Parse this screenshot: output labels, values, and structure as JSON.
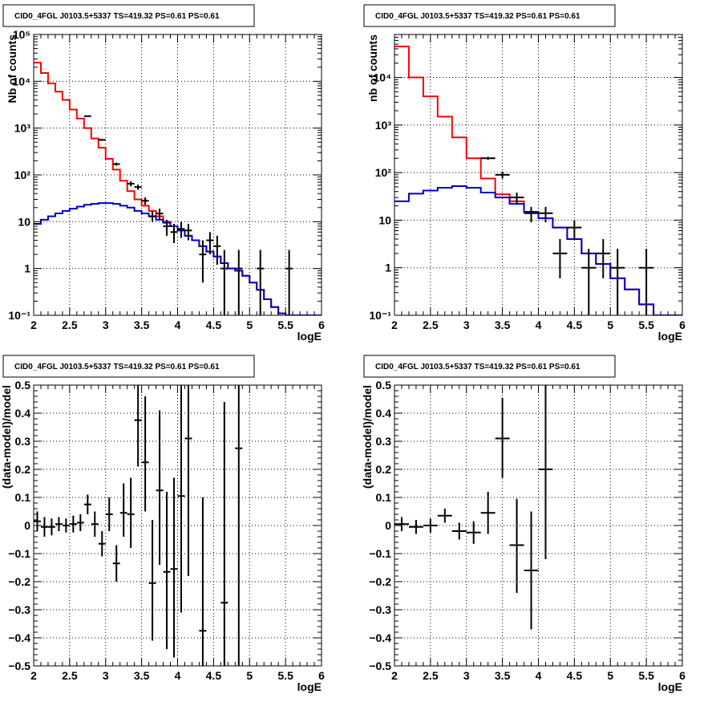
{
  "chart_data": [
    {
      "id": "p1",
      "type": "line",
      "subtype": "step-histogram-with-data-points",
      "title": "CID0_4FGL J0103.5+5337 TS=419.32 PS=0.61 PS=0.61",
      "xlabel": "logE",
      "ylabel": "Nb of counts",
      "xlim": [
        2,
        6
      ],
      "ylim": [
        0.1,
        100000
      ],
      "yscale": "log",
      "grid": true,
      "xticks": [
        2,
        2.5,
        3,
        3.5,
        4,
        4.5,
        5,
        5.5,
        6
      ],
      "xtick_labels": [
        "2",
        "2.5",
        "3",
        "3.5",
        "4",
        "4.5",
        "5",
        "5.5",
        "6"
      ],
      "yticks": [
        0.1,
        1,
        10,
        100,
        1000,
        10000,
        100000
      ],
      "ytick_labels": [
        "10⁻¹",
        "1",
        "10",
        "10²",
        "10³",
        "10⁴",
        "10⁵"
      ],
      "series": [
        {
          "color": "#ff0000",
          "style": "step",
          "bin_edges": [
            2.0,
            2.1,
            2.2,
            2.3,
            2.4,
            2.5,
            2.6,
            2.7,
            2.8,
            2.9,
            3.0,
            3.1,
            3.2,
            3.3,
            3.4,
            3.5,
            3.6,
            3.7,
            3.8,
            3.9,
            4.0,
            4.1,
            4.2,
            4.3,
            4.4,
            4.5,
            4.6,
            4.7,
            4.8,
            4.9,
            5.0,
            5.1,
            5.2,
            5.3,
            5.4,
            5.5,
            5.6,
            5.7,
            5.8,
            5.9,
            6.0
          ],
          "values": [
            25000,
            15000,
            9000,
            6000,
            4000,
            2500,
            1600,
            1000,
            600,
            380,
            220,
            130,
            75,
            45,
            30,
            22,
            17,
            13,
            10,
            8,
            6.5,
            5,
            4,
            3,
            2.3,
            1.8,
            1.3,
            1.0,
            0.9,
            0.7,
            0.5,
            0.35,
            0.22,
            0.15,
            0.11,
            0.1,
            0.1,
            0.1,
            0.1,
            0.1
          ]
        },
        {
          "color": "#0000cc",
          "style": "step",
          "bin_edges": [
            2.0,
            2.1,
            2.2,
            2.3,
            2.4,
            2.5,
            2.6,
            2.7,
            2.8,
            2.9,
            3.0,
            3.1,
            3.2,
            3.3,
            3.4,
            3.5,
            3.6,
            3.7,
            3.8,
            3.9,
            4.0,
            4.1,
            4.2,
            4.3,
            4.4,
            4.5,
            4.6,
            4.7,
            4.8,
            4.9,
            5.0,
            5.1,
            5.2,
            5.3,
            5.4,
            5.5,
            5.6,
            5.7,
            5.8,
            5.9,
            6.0
          ],
          "values": [
            9,
            11,
            13,
            15,
            17,
            19,
            21,
            23,
            24,
            25,
            25,
            24,
            22,
            20,
            17,
            15,
            13,
            11,
            9.5,
            8,
            6.5,
            5,
            4,
            3,
            2.3,
            1.8,
            1.3,
            1.0,
            0.9,
            0.7,
            0.5,
            0.35,
            0.22,
            0.15,
            0.11,
            0.1,
            0.1,
            0.1,
            0.1,
            0.1
          ]
        },
        {
          "color": "#000000",
          "style": "points",
          "points": [
            {
              "x": 2.75,
              "y": 1800,
              "xerr": 0.05,
              "ylo": 1750,
              "yhi": 1850
            },
            {
              "x": 2.95,
              "y": 560,
              "xerr": 0.05,
              "ylo": 535,
              "yhi": 585
            },
            {
              "x": 3.15,
              "y": 170,
              "xerr": 0.05,
              "ylo": 157,
              "yhi": 183
            },
            {
              "x": 3.35,
              "y": 65,
              "xerr": 0.05,
              "ylo": 57,
              "yhi": 73
            },
            {
              "x": 3.45,
              "y": 55,
              "xerr": 0.05,
              "ylo": 48,
              "yhi": 62
            },
            {
              "x": 3.55,
              "y": 28,
              "xerr": 0.05,
              "ylo": 23,
              "yhi": 33
            },
            {
              "x": 3.65,
              "y": 13,
              "xerr": 0.05,
              "ylo": 10,
              "yhi": 17
            },
            {
              "x": 3.75,
              "y": 15,
              "xerr": 0.05,
              "ylo": 11,
              "yhi": 19
            },
            {
              "x": 3.85,
              "y": 8,
              "xerr": 0.05,
              "ylo": 5,
              "yhi": 11
            },
            {
              "x": 3.95,
              "y": 6,
              "xerr": 0.05,
              "ylo": 3.5,
              "yhi": 9
            },
            {
              "x": 4.05,
              "y": 7,
              "xerr": 0.05,
              "ylo": 4.5,
              "yhi": 10
            },
            {
              "x": 4.15,
              "y": 6.5,
              "xerr": 0.05,
              "ylo": 4,
              "yhi": 9
            },
            {
              "x": 4.35,
              "y": 2,
              "xerr": 0.05,
              "ylo": 0.5,
              "yhi": 4
            },
            {
              "x": 4.45,
              "y": 4,
              "xerr": 0.05,
              "ylo": 2,
              "yhi": 6
            },
            {
              "x": 4.55,
              "y": 3,
              "xerr": 0.05,
              "ylo": 1.2,
              "yhi": 5
            },
            {
              "x": 4.65,
              "y": 1,
              "xerr": 0.05,
              "ylo": 0.1,
              "yhi": 2.5
            },
            {
              "x": 4.85,
              "y": 1,
              "xerr": 0.05,
              "ylo": 0.1,
              "yhi": 2.5
            },
            {
              "x": 5.15,
              "y": 1,
              "xerr": 0.05,
              "ylo": 0.1,
              "yhi": 2.5
            },
            {
              "x": 5.55,
              "y": 1,
              "xerr": 0.05,
              "ylo": 0.1,
              "yhi": 2.5
            }
          ]
        }
      ]
    },
    {
      "id": "p2",
      "type": "line",
      "subtype": "step-histogram-with-data-points",
      "title": "CID0_4FGL J0103.5+5337 TS=419.32 PS=0.61 PS=0.61",
      "xlabel": "logE",
      "ylabel": "nb of counts",
      "xlim": [
        2,
        6
      ],
      "ylim": [
        0.1,
        80000
      ],
      "yscale": "log",
      "grid": true,
      "xticks": [
        2,
        2.5,
        3,
        3.5,
        4,
        4.5,
        5,
        5.5,
        6
      ],
      "xtick_labels": [
        "2",
        "2.5",
        "3",
        "3.5",
        "4",
        "4.5",
        "5",
        "5.5",
        "6"
      ],
      "yticks": [
        0.1,
        1,
        10,
        100,
        1000,
        10000
      ],
      "ytick_labels": [
        "10⁻¹",
        "1",
        "10",
        "10²",
        "10³",
        "10⁴"
      ],
      "series": [
        {
          "color": "#ff0000",
          "style": "step",
          "bin_edges": [
            2.0,
            2.2,
            2.4,
            2.6,
            2.8,
            3.0,
            3.2,
            3.4,
            3.6,
            3.8,
            4.0,
            4.2,
            4.4,
            4.6,
            4.8,
            5.0,
            5.2,
            5.4,
            5.6,
            5.8,
            6.0
          ],
          "values": [
            45000,
            10000,
            4000,
            1500,
            550,
            200,
            75,
            35,
            25,
            15,
            11,
            7,
            4,
            2,
            1.2,
            0.6,
            0.35,
            0.17,
            0.1,
            0.1
          ]
        },
        {
          "color": "#0000cc",
          "style": "step",
          "bin_edges": [
            2.0,
            2.2,
            2.4,
            2.6,
            2.8,
            3.0,
            3.2,
            3.4,
            3.6,
            3.8,
            4.0,
            4.2,
            4.4,
            4.6,
            4.8,
            5.0,
            5.2,
            5.4,
            5.6,
            5.8,
            6.0
          ],
          "values": [
            25,
            36,
            42,
            48,
            52,
            48,
            38,
            30,
            22,
            15,
            11,
            7,
            4,
            2,
            1.2,
            0.6,
            0.35,
            0.17,
            0.1,
            0.1
          ]
        },
        {
          "color": "#000000",
          "style": "points",
          "points": [
            {
              "x": 3.3,
              "y": 200,
              "xerr": 0.1,
              "ylo": 185,
              "yhi": 215
            },
            {
              "x": 3.5,
              "y": 90,
              "xerr": 0.1,
              "ylo": 75,
              "yhi": 105
            },
            {
              "x": 3.7,
              "y": 30,
              "xerr": 0.1,
              "ylo": 22,
              "yhi": 38
            },
            {
              "x": 3.9,
              "y": 14,
              "xerr": 0.1,
              "ylo": 9,
              "yhi": 19
            },
            {
              "x": 4.1,
              "y": 14,
              "xerr": 0.1,
              "ylo": 9,
              "yhi": 19
            },
            {
              "x": 4.3,
              "y": 2,
              "xerr": 0.1,
              "ylo": 0.6,
              "yhi": 4
            },
            {
              "x": 4.5,
              "y": 7,
              "xerr": 0.1,
              "ylo": 4,
              "yhi": 10
            },
            {
              "x": 4.7,
              "y": 1,
              "xerr": 0.1,
              "ylo": 0.1,
              "yhi": 2.5
            },
            {
              "x": 4.9,
              "y": 2,
              "xerr": 0.1,
              "ylo": 0.6,
              "yhi": 4
            },
            {
              "x": 5.1,
              "y": 1,
              "xerr": 0.1,
              "ylo": 0.1,
              "yhi": 2.5
            },
            {
              "x": 5.5,
              "y": 1,
              "xerr": 0.1,
              "ylo": 0.1,
              "yhi": 2.5
            }
          ]
        }
      ]
    },
    {
      "id": "p3",
      "type": "scatter",
      "subtype": "error-bars",
      "title": "CID0_4FGL J0103.5+5337 TS=419.32 PS=0.61 PS=0.61",
      "xlabel": "logE",
      "ylabel": "(data-model)/model",
      "xlim": [
        2,
        6
      ],
      "ylim": [
        -0.5,
        0.5
      ],
      "yscale": "linear",
      "grid": true,
      "xticks": [
        2,
        2.5,
        3,
        3.5,
        4,
        4.5,
        5,
        5.5,
        6
      ],
      "xtick_labels": [
        "2",
        "2.5",
        "3",
        "3.5",
        "4",
        "4.5",
        "5",
        "5.5",
        "6"
      ],
      "yticks": [
        -0.5,
        -0.4,
        -0.3,
        -0.2,
        -0.1,
        0,
        0.1,
        0.2,
        0.3,
        0.4,
        0.5
      ],
      "ytick_labels": [
        "−0.5",
        "−0.4",
        "−0.3",
        "−0.2",
        "−0.1",
        "0",
        "0.1",
        "0.2",
        "0.3",
        "0.4",
        "0.5"
      ],
      "series": [
        {
          "color": "#000000",
          "style": "points",
          "points": [
            {
              "x": 2.05,
              "y": 0.015,
              "xerr": 0.05,
              "ylo": -0.02,
              "yhi": 0.05
            },
            {
              "x": 2.15,
              "y": -0.005,
              "xerr": 0.05,
              "ylo": -0.04,
              "yhi": 0.03
            },
            {
              "x": 2.25,
              "y": -0.005,
              "xerr": 0.05,
              "ylo": -0.035,
              "yhi": 0.025
            },
            {
              "x": 2.35,
              "y": 0.005,
              "xerr": 0.05,
              "ylo": -0.02,
              "yhi": 0.03
            },
            {
              "x": 2.45,
              "y": 0.0,
              "xerr": 0.05,
              "ylo": -0.025,
              "yhi": 0.025
            },
            {
              "x": 2.55,
              "y": 0.005,
              "xerr": 0.05,
              "ylo": -0.025,
              "yhi": 0.035
            },
            {
              "x": 2.65,
              "y": 0.01,
              "xerr": 0.05,
              "ylo": -0.02,
              "yhi": 0.04
            },
            {
              "x": 2.75,
              "y": 0.075,
              "xerr": 0.05,
              "ylo": 0.04,
              "yhi": 0.11
            },
            {
              "x": 2.85,
              "y": 0.005,
              "xerr": 0.05,
              "ylo": -0.04,
              "yhi": 0.05
            },
            {
              "x": 2.95,
              "y": -0.065,
              "xerr": 0.05,
              "ylo": -0.11,
              "yhi": -0.02
            },
            {
              "x": 3.05,
              "y": 0.04,
              "xerr": 0.05,
              "ylo": -0.02,
              "yhi": 0.1
            },
            {
              "x": 3.15,
              "y": -0.135,
              "xerr": 0.05,
              "ylo": -0.2,
              "yhi": -0.07
            },
            {
              "x": 3.25,
              "y": 0.045,
              "xerr": 0.05,
              "ylo": -0.04,
              "yhi": 0.15
            },
            {
              "x": 3.35,
              "y": 0.04,
              "xerr": 0.05,
              "ylo": -0.08,
              "yhi": 0.17
            },
            {
              "x": 3.45,
              "y": 0.375,
              "xerr": 0.05,
              "ylo": 0.21,
              "yhi": 0.5
            },
            {
              "x": 3.55,
              "y": 0.225,
              "xerr": 0.05,
              "ylo": 0.05,
              "yhi": 0.46
            },
            {
              "x": 3.65,
              "y": -0.205,
              "xerr": 0.05,
              "ylo": -0.41,
              "yhi": 0.02
            },
            {
              "x": 3.75,
              "y": 0.125,
              "xerr": 0.05,
              "ylo": -0.14,
              "yhi": 0.41
            },
            {
              "x": 3.85,
              "y": -0.165,
              "xerr": 0.05,
              "ylo": -0.44,
              "yhi": 0.12
            },
            {
              "x": 3.95,
              "y": -0.155,
              "xerr": 0.05,
              "ylo": -0.47,
              "yhi": 0.17
            },
            {
              "x": 4.05,
              "y": 0.105,
              "xerr": 0.05,
              "ylo": -0.31,
              "yhi": 0.5
            },
            {
              "x": 4.15,
              "y": 0.31,
              "xerr": 0.05,
              "ylo": -0.18,
              "yhi": 0.5
            },
            {
              "x": 4.35,
              "y": -0.375,
              "xerr": 0.05,
              "ylo": -0.5,
              "yhi": 0.1
            },
            {
              "x": 4.65,
              "y": -0.275,
              "xerr": 0.05,
              "ylo": -0.5,
              "yhi": 0.44
            },
            {
              "x": 4.85,
              "y": 0.275,
              "xerr": 0.05,
              "ylo": -0.5,
              "yhi": 0.5
            }
          ]
        }
      ]
    },
    {
      "id": "p4",
      "type": "scatter",
      "subtype": "error-bars",
      "title": "CID0_4FGL J0103.5+5337 TS=419.32 PS=0.61 PS=0.61",
      "xlabel": "logE",
      "ylabel": "(data-model)/model",
      "xlim": [
        2,
        6
      ],
      "ylim": [
        -0.5,
        0.5
      ],
      "yscale": "linear",
      "grid": true,
      "xticks": [
        2,
        2.5,
        3,
        3.5,
        4,
        4.5,
        5,
        5.5,
        6
      ],
      "xtick_labels": [
        "2",
        "2.5",
        "3",
        "3.5",
        "4",
        "4.5",
        "5",
        "5.5",
        "6"
      ],
      "yticks": [
        -0.5,
        -0.4,
        -0.3,
        -0.2,
        -0.1,
        0,
        0.1,
        0.2,
        0.3,
        0.4,
        0.5
      ],
      "ytick_labels": [
        "−0.5",
        "−0.4",
        "−0.3",
        "−0.2",
        "−0.1",
        "0",
        "0.1",
        "0.2",
        "0.3",
        "0.4",
        "0.5"
      ],
      "series": [
        {
          "color": "#000000",
          "style": "points",
          "points": [
            {
              "x": 2.1,
              "y": 0.005,
              "xerr": 0.1,
              "ylo": -0.02,
              "yhi": 0.03
            },
            {
              "x": 2.3,
              "y": -0.005,
              "xerr": 0.1,
              "ylo": -0.03,
              "yhi": 0.02
            },
            {
              "x": 2.5,
              "y": 0.0,
              "xerr": 0.1,
              "ylo": -0.025,
              "yhi": 0.025
            },
            {
              "x": 2.7,
              "y": 0.035,
              "xerr": 0.1,
              "ylo": 0.01,
              "yhi": 0.06
            },
            {
              "x": 2.9,
              "y": -0.02,
              "xerr": 0.1,
              "ylo": -0.05,
              "yhi": 0.01
            },
            {
              "x": 3.1,
              "y": -0.025,
              "xerr": 0.1,
              "ylo": -0.065,
              "yhi": 0.015
            },
            {
              "x": 3.3,
              "y": 0.045,
              "xerr": 0.1,
              "ylo": -0.03,
              "yhi": 0.12
            },
            {
              "x": 3.5,
              "y": 0.31,
              "xerr": 0.1,
              "ylo": 0.17,
              "yhi": 0.455
            },
            {
              "x": 3.7,
              "y": -0.07,
              "xerr": 0.1,
              "ylo": -0.24,
              "yhi": 0.095
            },
            {
              "x": 3.9,
              "y": -0.16,
              "xerr": 0.1,
              "ylo": -0.37,
              "yhi": 0.05
            },
            {
              "x": 4.1,
              "y": 0.2,
              "xerr": 0.1,
              "ylo": -0.12,
              "yhi": 0.5
            }
          ]
        }
      ]
    }
  ]
}
